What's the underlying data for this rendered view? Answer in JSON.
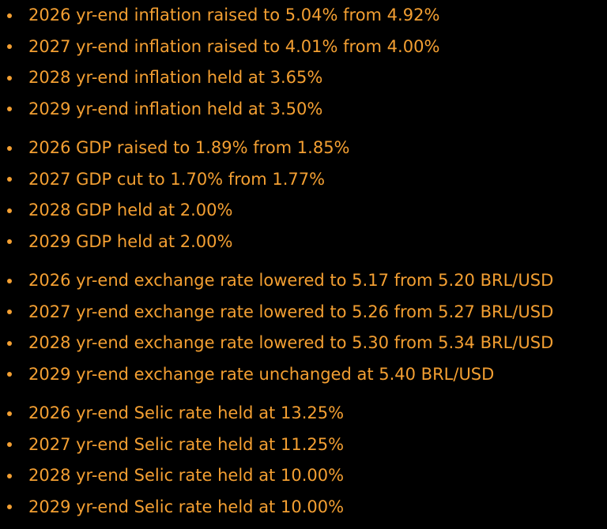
{
  "groups": [
    {
      "items": [
        "2026 yr-end inflation raised to 5.04% from 4.92%",
        "2027 yr-end inflation raised to 4.01% from 4.00%",
        "2028 yr-end inflation held at 3.65%",
        "2029 yr-end inflation held at 3.50%"
      ]
    },
    {
      "items": [
        "2026 GDP raised to 1.89% from 1.85%",
        "2027 GDP cut to 1.70% from 1.77%",
        "2028 GDP held at 2.00%",
        "2029 GDP held at 2.00%"
      ]
    },
    {
      "items": [
        "2026 yr-end exchange rate lowered to 5.17 from 5.20 BRL/USD",
        "2027 yr-end exchange rate lowered to 5.26 from 5.27 BRL/USD",
        "2028 yr-end exchange rate lowered to 5.30 from 5.34 BRL/USD",
        "2029 yr-end exchange rate unchanged at 5.40 BRL/USD"
      ]
    },
    {
      "items": [
        "2026 yr-end Selic rate held at 13.25%",
        "2027 yr-end Selic rate held at 11.25%",
        "2028 yr-end Selic rate held at 10.00%",
        "2029 yr-end Selic rate held at 10.00%"
      ]
    }
  ]
}
